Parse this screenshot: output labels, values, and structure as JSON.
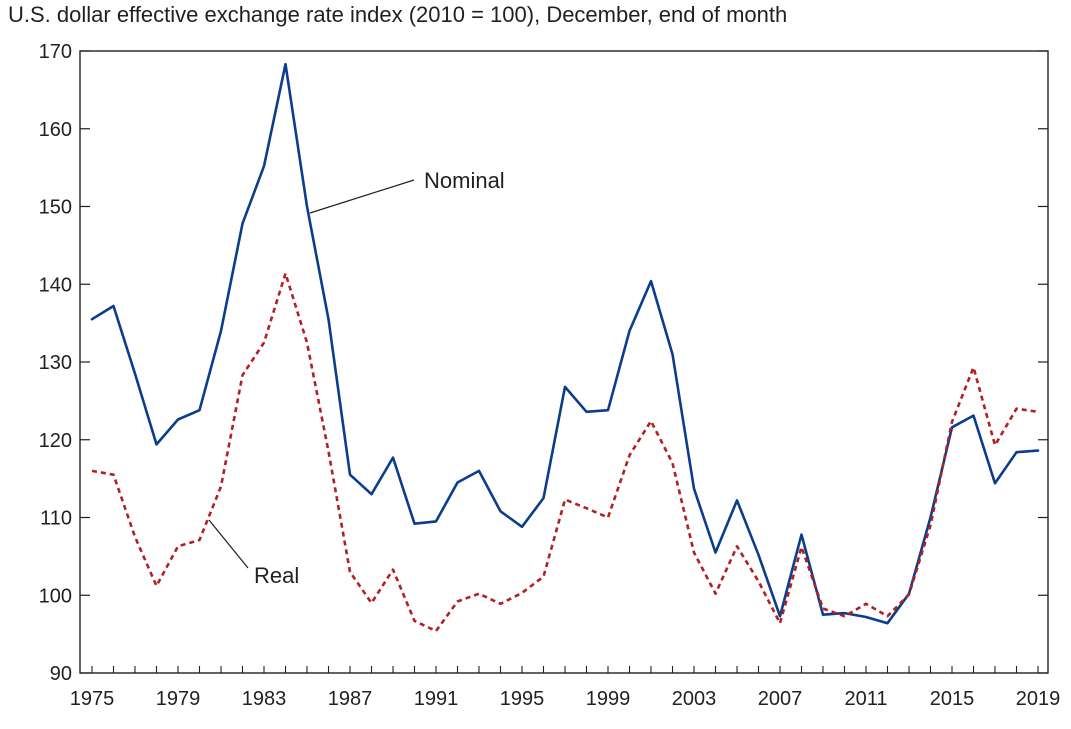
{
  "title": "U.S. dollar effective exchange rate index (2010 = 100), December,  end of month",
  "chart_data": {
    "type": "line",
    "title": "U.S. dollar effective exchange rate index (2010 = 100), December,  end of month",
    "xlabel": "",
    "ylabel": "",
    "xlim": [
      1975,
      2019
    ],
    "ylim": [
      90,
      170
    ],
    "grid": false,
    "x_ticks": [
      "1975",
      "1979",
      "1983",
      "1987",
      "1991",
      "1995",
      "1999",
      "2003",
      "2007",
      "2011",
      "2015",
      "2019"
    ],
    "y_ticks": [
      "90",
      "100",
      "110",
      "120",
      "130",
      "140",
      "150",
      "160",
      "170"
    ],
    "x": [
      1975,
      1976,
      1977,
      1978,
      1979,
      1980,
      1981,
      1982,
      1983,
      1984,
      1985,
      1986,
      1987,
      1988,
      1989,
      1990,
      1991,
      1992,
      1993,
      1994,
      1995,
      1996,
      1997,
      1998,
      1999,
      2000,
      2001,
      2002,
      2003,
      2004,
      2005,
      2006,
      2007,
      2008,
      2009,
      2010,
      2011,
      2012,
      2013,
      2014,
      2015,
      2016,
      2017,
      2018,
      2019
    ],
    "series": [
      {
        "name": "Nominal",
        "color": "#0b3d8c",
        "style": "solid",
        "values": [
          135.5,
          137.2,
          128.5,
          119.4,
          122.6,
          123.8,
          134.0,
          147.8,
          155.2,
          168.3,
          150.0,
          135.5,
          115.5,
          113.0,
          117.7,
          109.2,
          109.5,
          114.5,
          116.0,
          110.8,
          108.8,
          112.5,
          126.8,
          123.6,
          123.8,
          134.0,
          140.4,
          131.0,
          113.7,
          105.5,
          112.2,
          105.2,
          97.3,
          107.8,
          97.5,
          97.7,
          97.2,
          96.4,
          100.2,
          110.0,
          121.6,
          123.1,
          114.4,
          118.4,
          118.6
        ]
      },
      {
        "name": "Real",
        "color": "#b22024",
        "style": "dashed",
        "values": [
          116.0,
          115.5,
          107.5,
          101.2,
          106.3,
          107.1,
          114.0,
          128.3,
          132.5,
          141.4,
          132.5,
          118.5,
          103.0,
          99.0,
          103.3,
          96.7,
          95.4,
          99.2,
          100.2,
          98.9,
          100.3,
          102.4,
          112.3,
          111.2,
          110.0,
          118.0,
          122.4,
          117.0,
          105.5,
          100.2,
          106.3,
          101.8,
          96.4,
          106.2,
          98.3,
          97.3,
          98.9,
          97.3,
          100.1,
          109.0,
          122.3,
          129.3,
          119.3,
          124.0,
          123.6
        ]
      }
    ],
    "annotations": [
      {
        "text": "Nominal",
        "points_to": "Nominal"
      },
      {
        "text": "Real",
        "points_to": "Real"
      }
    ]
  }
}
